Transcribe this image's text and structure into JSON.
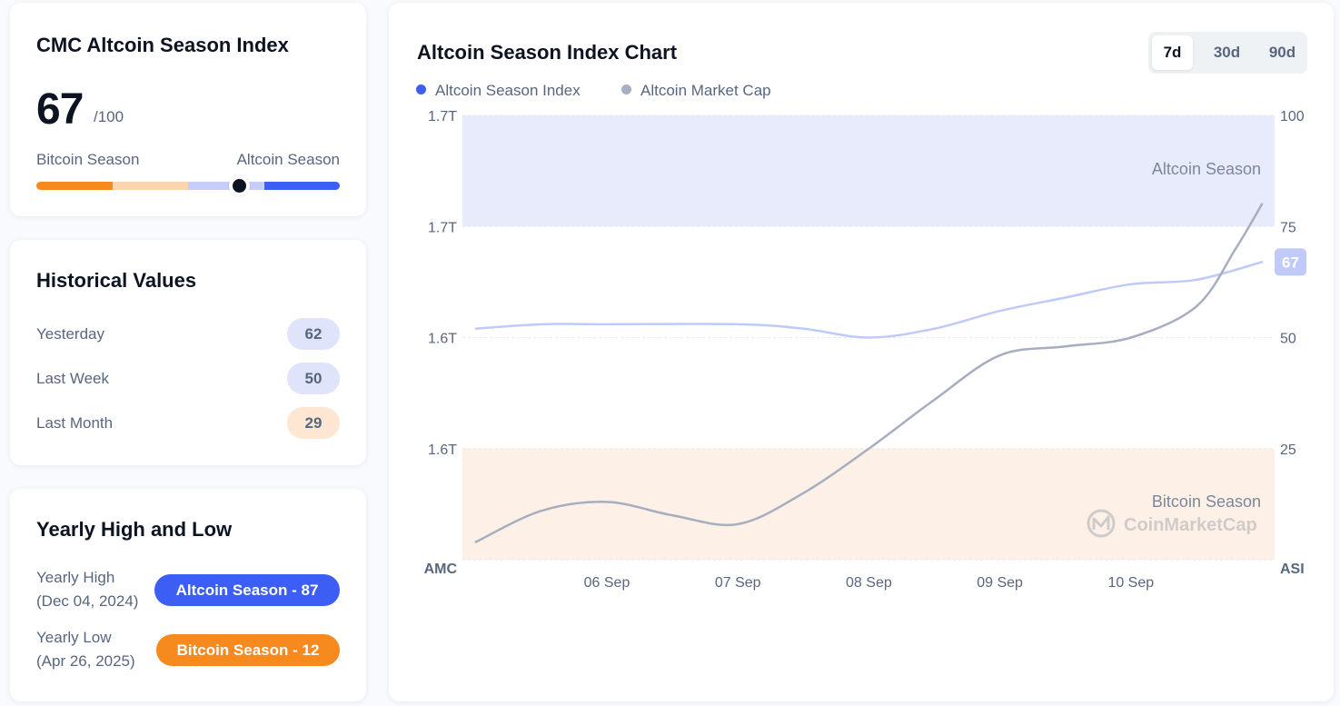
{
  "index_card": {
    "title": "CMC Altcoin Season Index",
    "value": "67",
    "max": "/100",
    "left_label": "Bitcoin Season",
    "right_label": "Altcoin Season",
    "gauge_value": 67,
    "colors": {
      "bitcoin": "#f68a1f",
      "bitcoin_light": "#fbd5ad",
      "altcoin_light": "#c5cdf8",
      "altcoin": "#3c5ef5"
    }
  },
  "historical": {
    "title": "Historical Values",
    "rows": [
      {
        "label": "Yesterday",
        "value": "62",
        "color": "#dfe4fb"
      },
      {
        "label": "Last Week",
        "value": "50",
        "color": "#dfe4fb"
      },
      {
        "label": "Last Month",
        "value": "29",
        "color": "#fde6d2"
      }
    ]
  },
  "yearly": {
    "title": "Yearly High and Low",
    "high": {
      "label": "Yearly High",
      "date": "(Dec 04, 2024)",
      "badge": "Altcoin Season - 87",
      "color": "#3c5ef5"
    },
    "low": {
      "label": "Yearly Low",
      "date": "(Apr 26, 2025)",
      "badge": "Bitcoin Season - 12",
      "color": "#f68a1f"
    }
  },
  "chart_panel": {
    "title": "Altcoin Season Index Chart",
    "ranges": [
      "7d",
      "30d",
      "90d"
    ],
    "active_range": "7d",
    "legend": [
      {
        "label": "Altcoin Season Index",
        "color": "#3c5ef5"
      },
      {
        "label": "Altcoin Market Cap",
        "color": "#a6b0c3"
      }
    ]
  },
  "chart_data": {
    "type": "line",
    "x_ticks": [
      "06 Sep",
      "07 Sep",
      "08 Sep",
      "09 Sep",
      "10 Sep"
    ],
    "left_axis": {
      "title": "AMC",
      "ticks": [
        "1.7T",
        "1.7T",
        "1.6T",
        "1.6T"
      ]
    },
    "right_axis": {
      "title": "ASI",
      "ticks": [
        "100",
        "75",
        "50",
        "25"
      ],
      "range": [
        0,
        100
      ]
    },
    "zones": [
      {
        "label": "Altcoin Season",
        "from": 75,
        "to": 100,
        "color": "#e8ebfc"
      },
      {
        "label": "Bitcoin Season",
        "from": 0,
        "to": 25,
        "color": "#fdf1e7"
      }
    ],
    "current_value": "67",
    "series": [
      {
        "name": "Altcoin Season Index",
        "axis": "right",
        "color": "#c0caf8",
        "x": [
          5.0,
          5.5,
          6.0,
          7.0,
          7.5,
          8.0,
          8.5,
          9.0,
          9.5,
          10.0,
          10.5,
          11.0
        ],
        "y": [
          52,
          53,
          53,
          53,
          52,
          50,
          52,
          56,
          59,
          62,
          63,
          67
        ]
      },
      {
        "name": "Altcoin Market Cap",
        "axis": "right",
        "color": "#a6aebf",
        "x": [
          5.0,
          5.5,
          6.0,
          6.5,
          7.0,
          7.5,
          8.0,
          8.5,
          9.0,
          9.5,
          10.0,
          10.5,
          10.8,
          11.0
        ],
        "y": [
          4,
          11,
          13,
          10,
          8,
          15,
          25,
          36,
          46,
          48,
          50,
          57,
          70,
          80
        ]
      }
    ],
    "watermark": "CoinMarketCap"
  }
}
